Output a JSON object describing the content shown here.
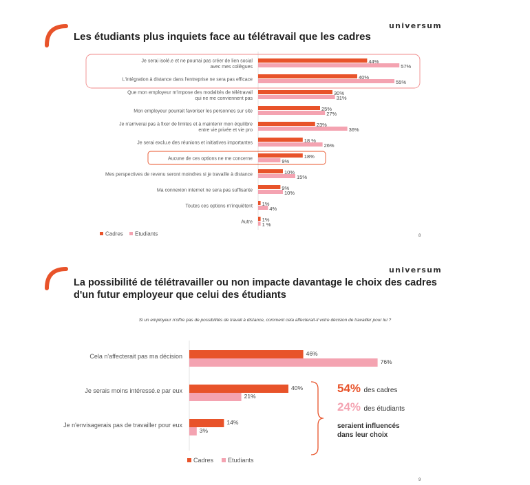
{
  "colors": {
    "cadres": "#e8532a",
    "etudiants": "#f4a3b1",
    "accent": "#e8532a"
  },
  "slide1": {
    "brand": "universum",
    "title": "Les étudiants plus inquiets face au télétravail que les cadres",
    "page_number": "8",
    "chart_data": {
      "type": "bar",
      "orientation": "horizontal",
      "categories": [
        [
          "Je serai isolé.e et ne pourrai pas créer de lien social",
          "avec mes collègues"
        ],
        [
          "L'intégration à distance dans l'entreprise ne sera pas efficace"
        ],
        [
          "Que mon employeur m'impose des modalités de télétravail",
          "qui ne me conviennent pas"
        ],
        [
          "Mon employeur pourrait favoriser les personnes sur site"
        ],
        [
          "Je n'arriverai pas à fixer de limites et à maintenir mon équilibre",
          "entre vie privée et vie pro"
        ],
        [
          "Je serai exclu.e des réunions et initiatives importantes"
        ],
        [
          "Aucune de ces options ne me concerne"
        ],
        [
          "Mes perspectives de revenu seront moindres si je travaille à distance"
        ],
        [
          "Ma connexion internet ne sera pas suffisante"
        ],
        [
          "Toutes ces options m'inquiètent"
        ],
        [
          "Autre"
        ]
      ],
      "series": [
        {
          "name": "Cadres",
          "values": [
            44,
            40,
            30,
            25,
            23,
            18,
            18,
            10,
            9,
            1,
            1
          ],
          "labels": [
            "44%",
            "40%",
            "30%",
            "25%",
            "23%",
            "18 %",
            "18%",
            "10%",
            "9%",
            "1%",
            "1%"
          ]
        },
        {
          "name": "Etudiants",
          "values": [
            57,
            55,
            31,
            27,
            36,
            26,
            9,
            15,
            10,
            4,
            1
          ],
          "labels": [
            "57%",
            "55%",
            "31%",
            "27%",
            "36%",
            "26%",
            "9%",
            "15%",
            "10%",
            "4%",
            "1 %"
          ]
        }
      ],
      "legend": [
        "Cadres",
        "Etudiants"
      ],
      "highlighted_rows": [
        [
          0,
          1
        ],
        [
          6
        ]
      ]
    }
  },
  "slide2": {
    "brand": "universum",
    "title_line1": "La possibilité de télétravailler ou non impacte davantage le choix des cadres",
    "title_line2": "d'un futur employeur que celui des étudiants",
    "question": "Si un employeur n'offre pas de possibilités de travail à distance, comment cela affecterait-il votre décision de travailler pour lui ?",
    "page_number": "9",
    "chart_data": {
      "type": "bar",
      "orientation": "horizontal",
      "categories": [
        "Cela n'affecterait pas ma décision",
        "Je serais moins intéressé.e par eux",
        "Je n'envisagerais pas de travailler pour eux"
      ],
      "series": [
        {
          "name": "Cadres",
          "values": [
            46,
            40,
            14
          ],
          "labels": [
            "46%",
            "40%",
            "14%"
          ]
        },
        {
          "name": "Etudiants",
          "values": [
            76,
            21,
            3
          ],
          "labels": [
            "76%",
            "21%",
            "3%"
          ]
        }
      ],
      "legend": [
        "Cadres",
        "Etudiants"
      ]
    },
    "callout": {
      "cadres_pct": "54%",
      "cadres_text": "des cadres",
      "etudiants_pct": "24%",
      "etudiants_text": "des étudiants",
      "line1": "seraient influencés",
      "line2": "dans leur choix"
    }
  }
}
